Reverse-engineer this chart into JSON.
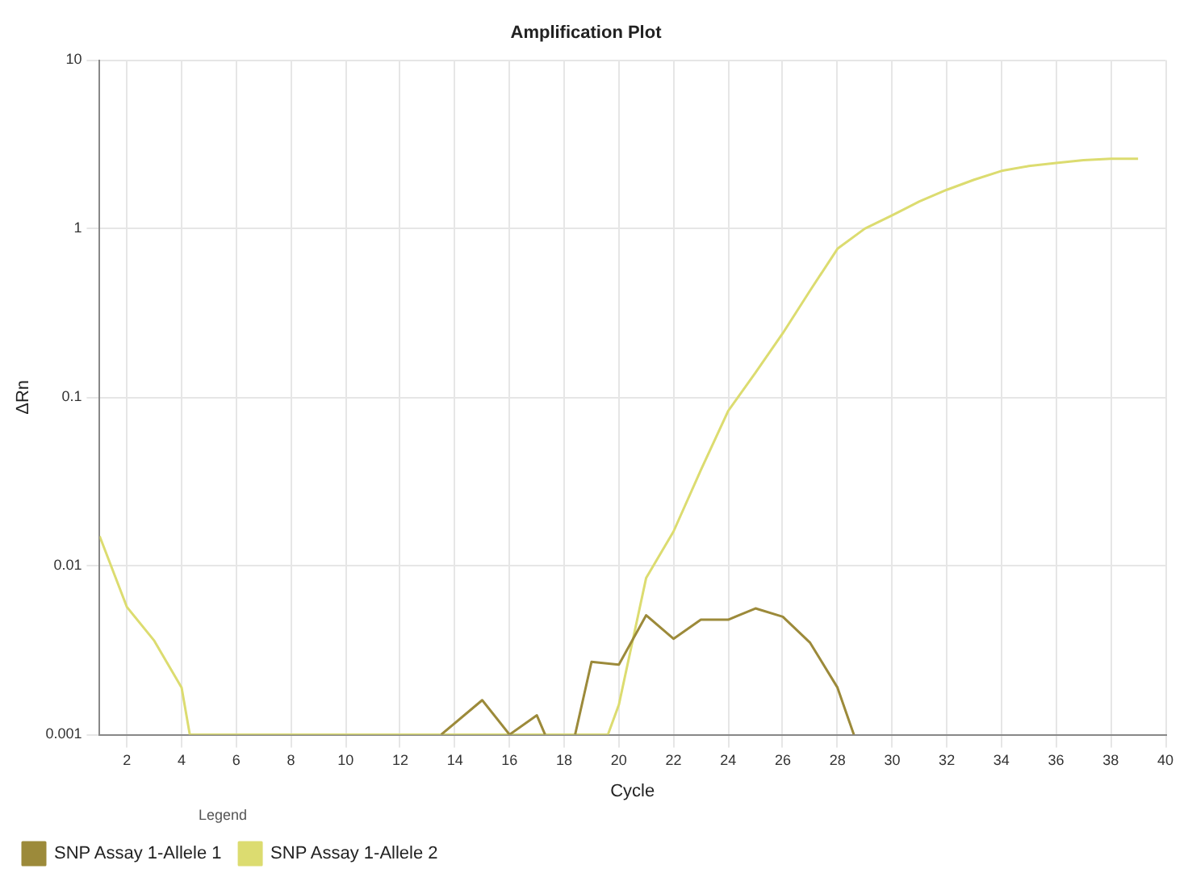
{
  "chart_data": {
    "type": "line",
    "title": "Amplification Plot",
    "xlabel": "Cycle",
    "ylabel": "ΔRn",
    "legend_title": "Legend",
    "legend": "bottom left",
    "grid": true,
    "log": "y",
    "marker": "none",
    "line_style": "solid",
    "xlim": [
      1,
      40
    ],
    "xticks": [
      2,
      4,
      6,
      8,
      10,
      12,
      14,
      16,
      18,
      20,
      22,
      24,
      26,
      28,
      30,
      32,
      34,
      36,
      38,
      40
    ],
    "ylim": [
      0.001,
      10
    ],
    "yticks": [
      0.001,
      0.01,
      0.1,
      1,
      10
    ],
    "series": [
      {
        "name": "SNP Assay 1-Allele 1",
        "color": "#9c8a3a",
        "x": [
          13.5,
          15,
          16,
          17,
          17.3,
          17.8,
          18.4,
          19,
          20,
          21,
          22,
          23,
          24,
          25,
          26,
          27,
          28,
          28.6
        ],
        "values": [
          0.001,
          0.0016,
          0.001,
          0.0013,
          0.001,
          null,
          0.001,
          0.0027,
          0.0026,
          0.0051,
          0.0037,
          0.0048,
          0.0048,
          0.0056,
          0.005,
          0.0035,
          0.0019,
          0.001
        ]
      },
      {
        "name": "SNP Assay 1-Allele 2",
        "color": "#dcdc70",
        "x": [
          1,
          2,
          3,
          4,
          4.3,
          19.6,
          20,
          21,
          22,
          23,
          24,
          25,
          26,
          27,
          28,
          29,
          30,
          31,
          32,
          33,
          34,
          35,
          36,
          37,
          38,
          39
        ],
        "values": [
          0.015,
          0.0057,
          0.0036,
          0.0019,
          0.001,
          0.001,
          0.0015,
          0.0085,
          0.016,
          0.037,
          0.083,
          0.14,
          0.24,
          0.43,
          0.76,
          1.0,
          1.2,
          1.45,
          1.7,
          1.95,
          2.2,
          2.35,
          2.45,
          2.55,
          2.6,
          2.6
        ]
      }
    ]
  }
}
